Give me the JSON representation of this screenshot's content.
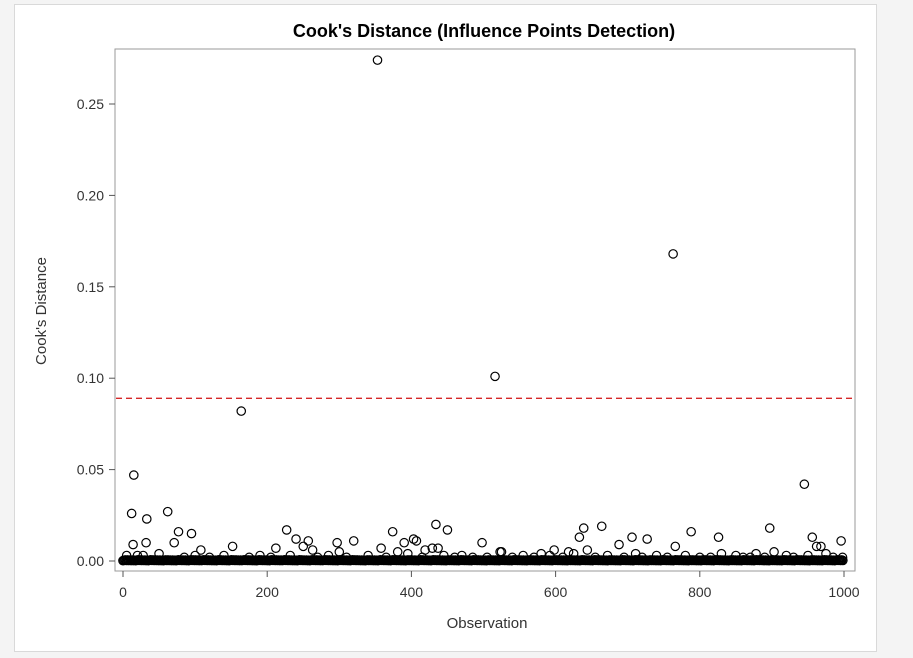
{
  "chart_data": {
    "type": "scatter",
    "title": "Cook's Distance (Influence Points Detection)",
    "xlabel": "Observation",
    "ylabel": "Cook's Distance",
    "xlim": [
      0,
      1000
    ],
    "ylim": [
      0,
      0.28
    ],
    "xticks": [
      0,
      200,
      400,
      600,
      800,
      1000
    ],
    "yticks": [
      0.0,
      0.05,
      0.1,
      0.15,
      0.2,
      0.25
    ],
    "xtick_labels": [
      "0",
      "200",
      "400",
      "600",
      "800",
      "1000"
    ],
    "ytick_labels": [
      "0.00",
      "0.05",
      "0.10",
      "0.15",
      "0.20",
      "0.25"
    ],
    "grid": false,
    "legend": "none",
    "threshold": {
      "value": 0.089,
      "style": "dashed",
      "color": "#d62728"
    },
    "marker": {
      "shape": "open-circle",
      "color": "#000000"
    },
    "series": [
      {
        "points": [
          [
            353,
            0.274
          ],
          [
            763,
            0.168
          ],
          [
            516,
            0.101
          ],
          [
            164,
            0.082
          ],
          [
            15,
            0.047
          ],
          [
            945,
            0.042
          ],
          [
            62,
            0.027
          ],
          [
            12,
            0.026
          ],
          [
            33,
            0.023
          ],
          [
            434,
            0.02
          ],
          [
            664,
            0.019
          ],
          [
            639,
            0.018
          ],
          [
            897,
            0.018
          ],
          [
            227,
            0.017
          ],
          [
            450,
            0.017
          ],
          [
            374,
            0.016
          ],
          [
            77,
            0.016
          ],
          [
            788,
            0.016
          ],
          [
            95,
            0.015
          ],
          [
            956,
            0.013
          ],
          [
            240,
            0.012
          ],
          [
            706,
            0.013
          ],
          [
            727,
            0.012
          ],
          [
            826,
            0.013
          ],
          [
            320,
            0.011
          ],
          [
            633,
            0.013
          ],
          [
            257,
            0.011
          ],
          [
            297,
            0.01
          ],
          [
            403,
            0.012
          ],
          [
            498,
            0.01
          ],
          [
            996,
            0.011
          ],
          [
            32,
            0.01
          ],
          [
            14,
            0.009
          ],
          [
            71,
            0.01
          ],
          [
            152,
            0.008
          ],
          [
            250,
            0.008
          ],
          [
            358,
            0.007
          ],
          [
            390,
            0.01
          ],
          [
            407,
            0.011
          ],
          [
            429,
            0.007
          ],
          [
            437,
            0.007
          ],
          [
            688,
            0.009
          ],
          [
            766,
            0.008
          ],
          [
            962,
            0.008
          ],
          [
            968,
            0.008
          ],
          [
            108,
            0.006
          ],
          [
            212,
            0.007
          ],
          [
            263,
            0.006
          ],
          [
            300,
            0.005
          ],
          [
            381,
            0.005
          ],
          [
            419,
            0.006
          ],
          [
            523,
            0.005
          ],
          [
            598,
            0.006
          ],
          [
            644,
            0.006
          ],
          [
            618,
            0.005
          ],
          [
            711,
            0.004
          ],
          [
            830,
            0.004
          ],
          [
            878,
            0.004
          ],
          [
            903,
            0.005
          ],
          [
            975,
            0.004
          ],
          [
            50,
            0.004
          ],
          [
            140,
            0.003
          ],
          [
            190,
            0.003
          ],
          [
            285,
            0.003
          ],
          [
            340,
            0.003
          ],
          [
            470,
            0.003
          ],
          [
            555,
            0.003
          ],
          [
            580,
            0.004
          ],
          [
            672,
            0.003
          ],
          [
            740,
            0.003
          ],
          [
            850,
            0.003
          ],
          [
            920,
            0.003
          ],
          [
            5,
            0.003
          ],
          [
            20,
            0.003
          ],
          [
            85,
            0.002
          ],
          [
            120,
            0.002
          ],
          [
            175,
            0.002
          ],
          [
            205,
            0.002
          ],
          [
            270,
            0.002
          ],
          [
            310,
            0.002
          ],
          [
            365,
            0.002
          ],
          [
            415,
            0.002
          ],
          [
            460,
            0.002
          ],
          [
            485,
            0.002
          ],
          [
            505,
            0.002
          ],
          [
            540,
            0.002
          ],
          [
            570,
            0.002
          ],
          [
            610,
            0.002
          ],
          [
            655,
            0.002
          ],
          [
            695,
            0.002
          ],
          [
            720,
            0.002
          ],
          [
            755,
            0.002
          ],
          [
            800,
            0.002
          ],
          [
            815,
            0.002
          ],
          [
            860,
            0.002
          ],
          [
            890,
            0.002
          ],
          [
            930,
            0.002
          ],
          [
            985,
            0.002
          ],
          [
            998,
            0.002
          ],
          [
            525,
            0.005
          ],
          [
            28,
            0.003
          ],
          [
            100,
            0.003
          ],
          [
            232,
            0.003
          ],
          [
            395,
            0.004
          ],
          [
            445,
            0.003
          ],
          [
            592,
            0.003
          ],
          [
            625,
            0.004
          ],
          [
            780,
            0.003
          ],
          [
            870,
            0.002
          ],
          [
            950,
            0.003
          ]
        ]
      }
    ]
  }
}
